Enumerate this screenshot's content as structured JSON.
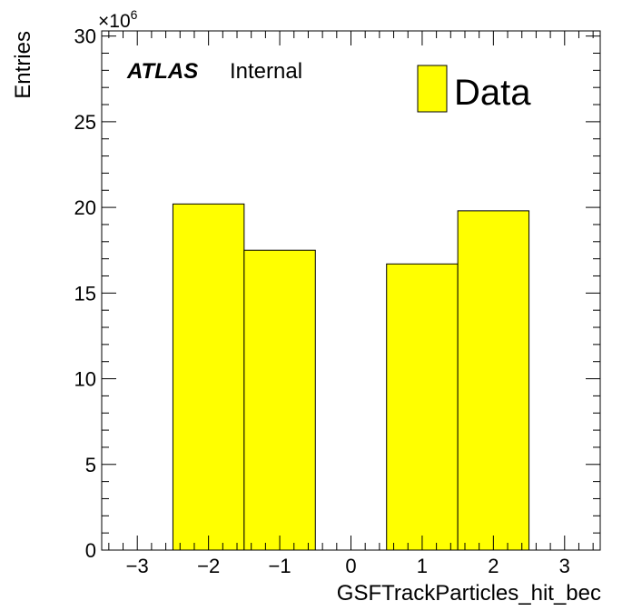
{
  "chart_data": {
    "type": "bar",
    "xlabel": "GSFTrackParticles_hit_bec",
    "ylabel": "Entries",
    "y_multiplier": "×10",
    "y_multiplier_exponent": "6",
    "xlim": [
      -3.5,
      3.5
    ],
    "ylim": [
      0,
      30.3
    ],
    "x_ticks": [
      -3,
      -2,
      -1,
      0,
      1,
      2,
      3
    ],
    "x_tick_labels": [
      "−3",
      "−2",
      "−1",
      "0",
      "1",
      "2",
      "3"
    ],
    "y_ticks": [
      0,
      5,
      10,
      15,
      20,
      25,
      30
    ],
    "y_tick_labels": [
      "0",
      "5",
      "10",
      "15",
      "20",
      "25",
      "30"
    ],
    "bin_width": 1,
    "bins": [
      {
        "center": -2,
        "value": 20.2
      },
      {
        "center": -1,
        "value": 17.5
      },
      {
        "center": 0,
        "value": 0
      },
      {
        "center": 1,
        "value": 16.7
      },
      {
        "center": 2,
        "value": 19.8
      }
    ],
    "fill_color": "#ffff00",
    "line_color": "#000000",
    "legend_position": "top-right",
    "series": [
      {
        "name": "Data"
      }
    ],
    "annotations": {
      "atlas": "ATLAS",
      "status": "Internal"
    }
  }
}
